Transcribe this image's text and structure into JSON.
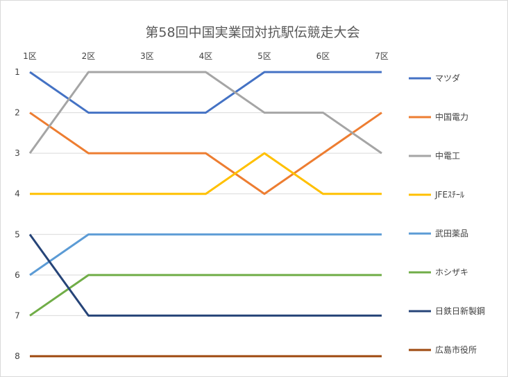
{
  "chart_data": {
    "type": "line",
    "title": "第58回中国実業団対抗駅伝競走大会",
    "xlabel": "",
    "ylabel": "",
    "categories": [
      "1区",
      "2区",
      "3区",
      "4区",
      "5区",
      "6区",
      "7区"
    ],
    "y_ticks": [
      "1",
      "2",
      "3",
      "4",
      "5",
      "6",
      "7",
      "8"
    ],
    "ylim": [
      1,
      8
    ],
    "y_reversed": true,
    "grid": "horizontal",
    "legend_position": "right",
    "series": [
      {
        "name": "マツダ",
        "color": "#4472C4",
        "values": [
          1,
          2,
          2,
          2,
          1,
          1,
          1
        ]
      },
      {
        "name": "中国電力",
        "color": "#ED7D31",
        "values": [
          2,
          3,
          3,
          3,
          4,
          3,
          2
        ]
      },
      {
        "name": "中電工",
        "color": "#A5A5A5",
        "values": [
          3,
          1,
          1,
          1,
          2,
          2,
          3
        ]
      },
      {
        "name": "JFEｽﾁｰﾙ",
        "color": "#FFC000",
        "values": [
          4,
          4,
          4,
          4,
          3,
          4,
          4
        ]
      },
      {
        "name": "武田薬品",
        "color": "#5B9BD5",
        "values": [
          6,
          5,
          5,
          5,
          5,
          5,
          5
        ]
      },
      {
        "name": "ホシザキ",
        "color": "#70AD47",
        "values": [
          7,
          6,
          6,
          6,
          6,
          6,
          6
        ]
      },
      {
        "name": "日鉄日新製鋼",
        "color": "#264478",
        "values": [
          5,
          7,
          7,
          7,
          7,
          7,
          7
        ]
      },
      {
        "name": "広島市役所",
        "color": "#9E480E",
        "values": [
          8,
          8,
          8,
          8,
          8,
          8,
          8
        ]
      }
    ]
  }
}
